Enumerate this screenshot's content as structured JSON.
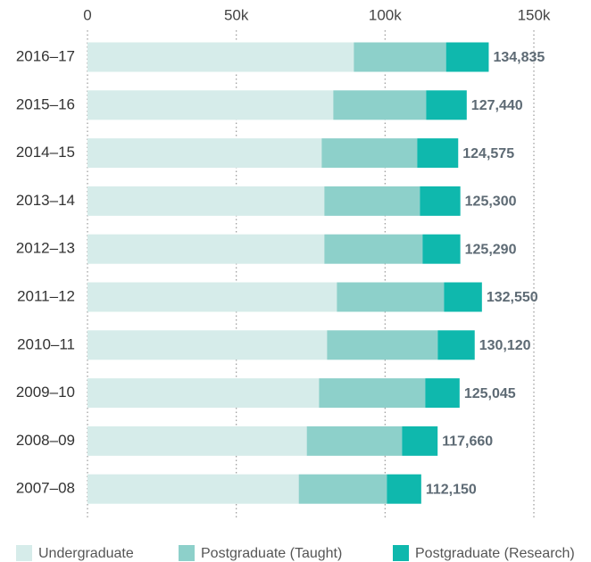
{
  "chart_data": {
    "type": "stacked-bar-horizontal",
    "categories": [
      "2016–17",
      "2015–16",
      "2014–15",
      "2013–14",
      "2012–13",
      "2011–12",
      "2010–11",
      "2009–10",
      "2008–09",
      "2007–08"
    ],
    "series": [
      {
        "name": "Undergraduate",
        "color": "#d6ecea",
        "values": [
          89500,
          82600,
          78700,
          79600,
          79600,
          83800,
          80500,
          77800,
          73700,
          71000
        ]
      },
      {
        "name": "Postgraduate (Taught)",
        "color": "#8dd0ca",
        "values": [
          31000,
          31200,
          32100,
          32100,
          33000,
          36000,
          37200,
          35700,
          32000,
          29600
        ]
      },
      {
        "name": "Postgraduate (Research)",
        "color": "#0fb8ad",
        "values": [
          14335,
          13640,
          13775,
          13600,
          12690,
          12750,
          12420,
          11545,
          11960,
          11550
        ]
      }
    ],
    "totals": [
      134835,
      127440,
      124575,
      125300,
      125290,
      132550,
      130120,
      125045,
      117660,
      112150
    ],
    "total_labels": [
      "134,835",
      "127,440",
      "124,575",
      "125,300",
      "125,290",
      "132,550",
      "130,120",
      "125,045",
      "117,660",
      "112,150"
    ],
    "xlim": [
      0,
      150000
    ],
    "xticks": [
      0,
      {
        "value": 50000,
        "label": "50k"
      },
      {
        "value": 100000,
        "label": "100k"
      },
      {
        "value": 150000,
        "label": "150k"
      }
    ],
    "grid": true
  }
}
